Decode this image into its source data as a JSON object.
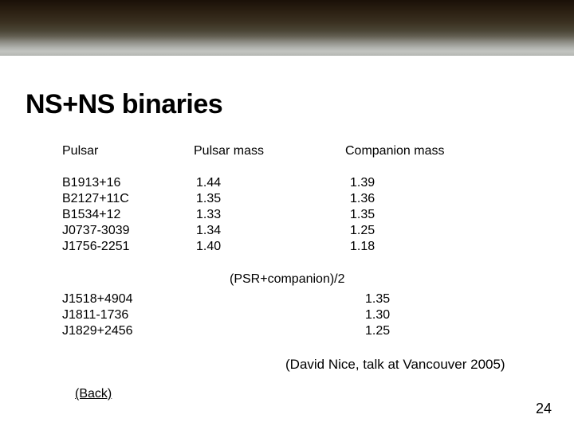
{
  "title": "NS+NS binaries",
  "headers": {
    "c1": "Pulsar",
    "c2": "Pulsar mass",
    "c3": "Companion mass"
  },
  "rows": [
    {
      "name": "B1913+16",
      "pm": "1.44",
      "cm": "1.39",
      "pm_pad": "",
      "cm_pad": ""
    },
    {
      "name": "B2127+11C",
      "pm": "1.35",
      "cm": "1.36",
      "pm_pad": "i",
      "cm_pad": "i"
    },
    {
      "name": "B1534+12",
      "pm": "1.33",
      "cm": "1.35",
      "pm_pad": "",
      "cm_pad": ""
    },
    {
      "name": "J0737-3039",
      "pm": "1.34",
      "cm": "1.25",
      "pm_pad": "i",
      "cm_pad": ""
    },
    {
      "name": "J1756-2251",
      "pm": "1.40",
      "cm": "1.18",
      "pm_pad": "i",
      "cm_pad": ""
    }
  ],
  "subheader": "(PSR+companion)/2",
  "rows2": [
    {
      "name": "J1518+4904",
      "val": "1.35"
    },
    {
      "name": "J1811-1736",
      "val": "1.30"
    },
    {
      "name": "J1829+2456",
      "val": "1.25"
    }
  ],
  "attribution": "(David Nice, talk at Vancouver 2005)",
  "back": "(Back)",
  "pagenum": "24"
}
